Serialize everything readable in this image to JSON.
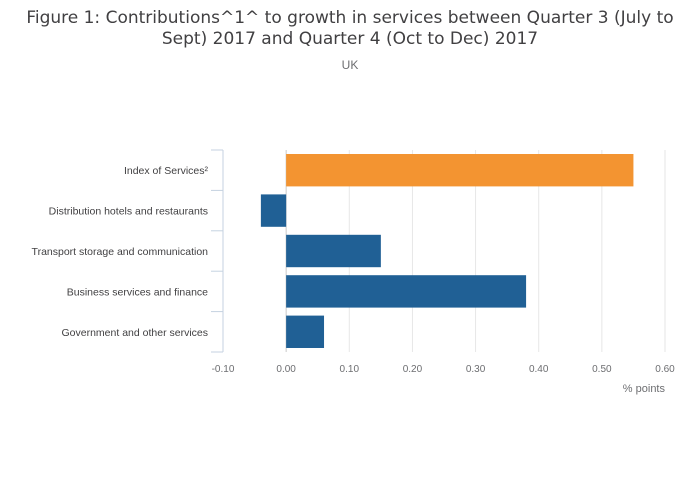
{
  "chart_data": {
    "type": "bar",
    "orientation": "horizontal",
    "title_lines": [
      "Figure 1: Contributions^1^ to growth in services between Quarter 3 (July to",
      "Sept) 2017 and Quarter 4 (Oct to Dec) 2017"
    ],
    "subtitle": "UK",
    "categories": [
      "Index of Services²",
      "Distribution hotels and restaurants",
      "Transport storage and communication",
      "Business services and finance",
      "Government and other services"
    ],
    "values": [
      0.55,
      -0.04,
      0.15,
      0.38,
      0.06
    ],
    "bar_colors": [
      "#f39431",
      "#206095",
      "#206095",
      "#206095",
      "#206095"
    ],
    "xlabel": "% points",
    "ylabel": "",
    "xlim": [
      -0.1,
      0.6
    ],
    "xticks": [
      -0.1,
      0.0,
      0.1,
      0.2,
      0.3,
      0.4,
      0.5,
      0.6
    ],
    "xtick_labels": [
      "-0.10",
      "0.00",
      "0.10",
      "0.20",
      "0.30",
      "0.40",
      "0.50",
      "0.60"
    ],
    "grid": true,
    "legend": "none"
  }
}
